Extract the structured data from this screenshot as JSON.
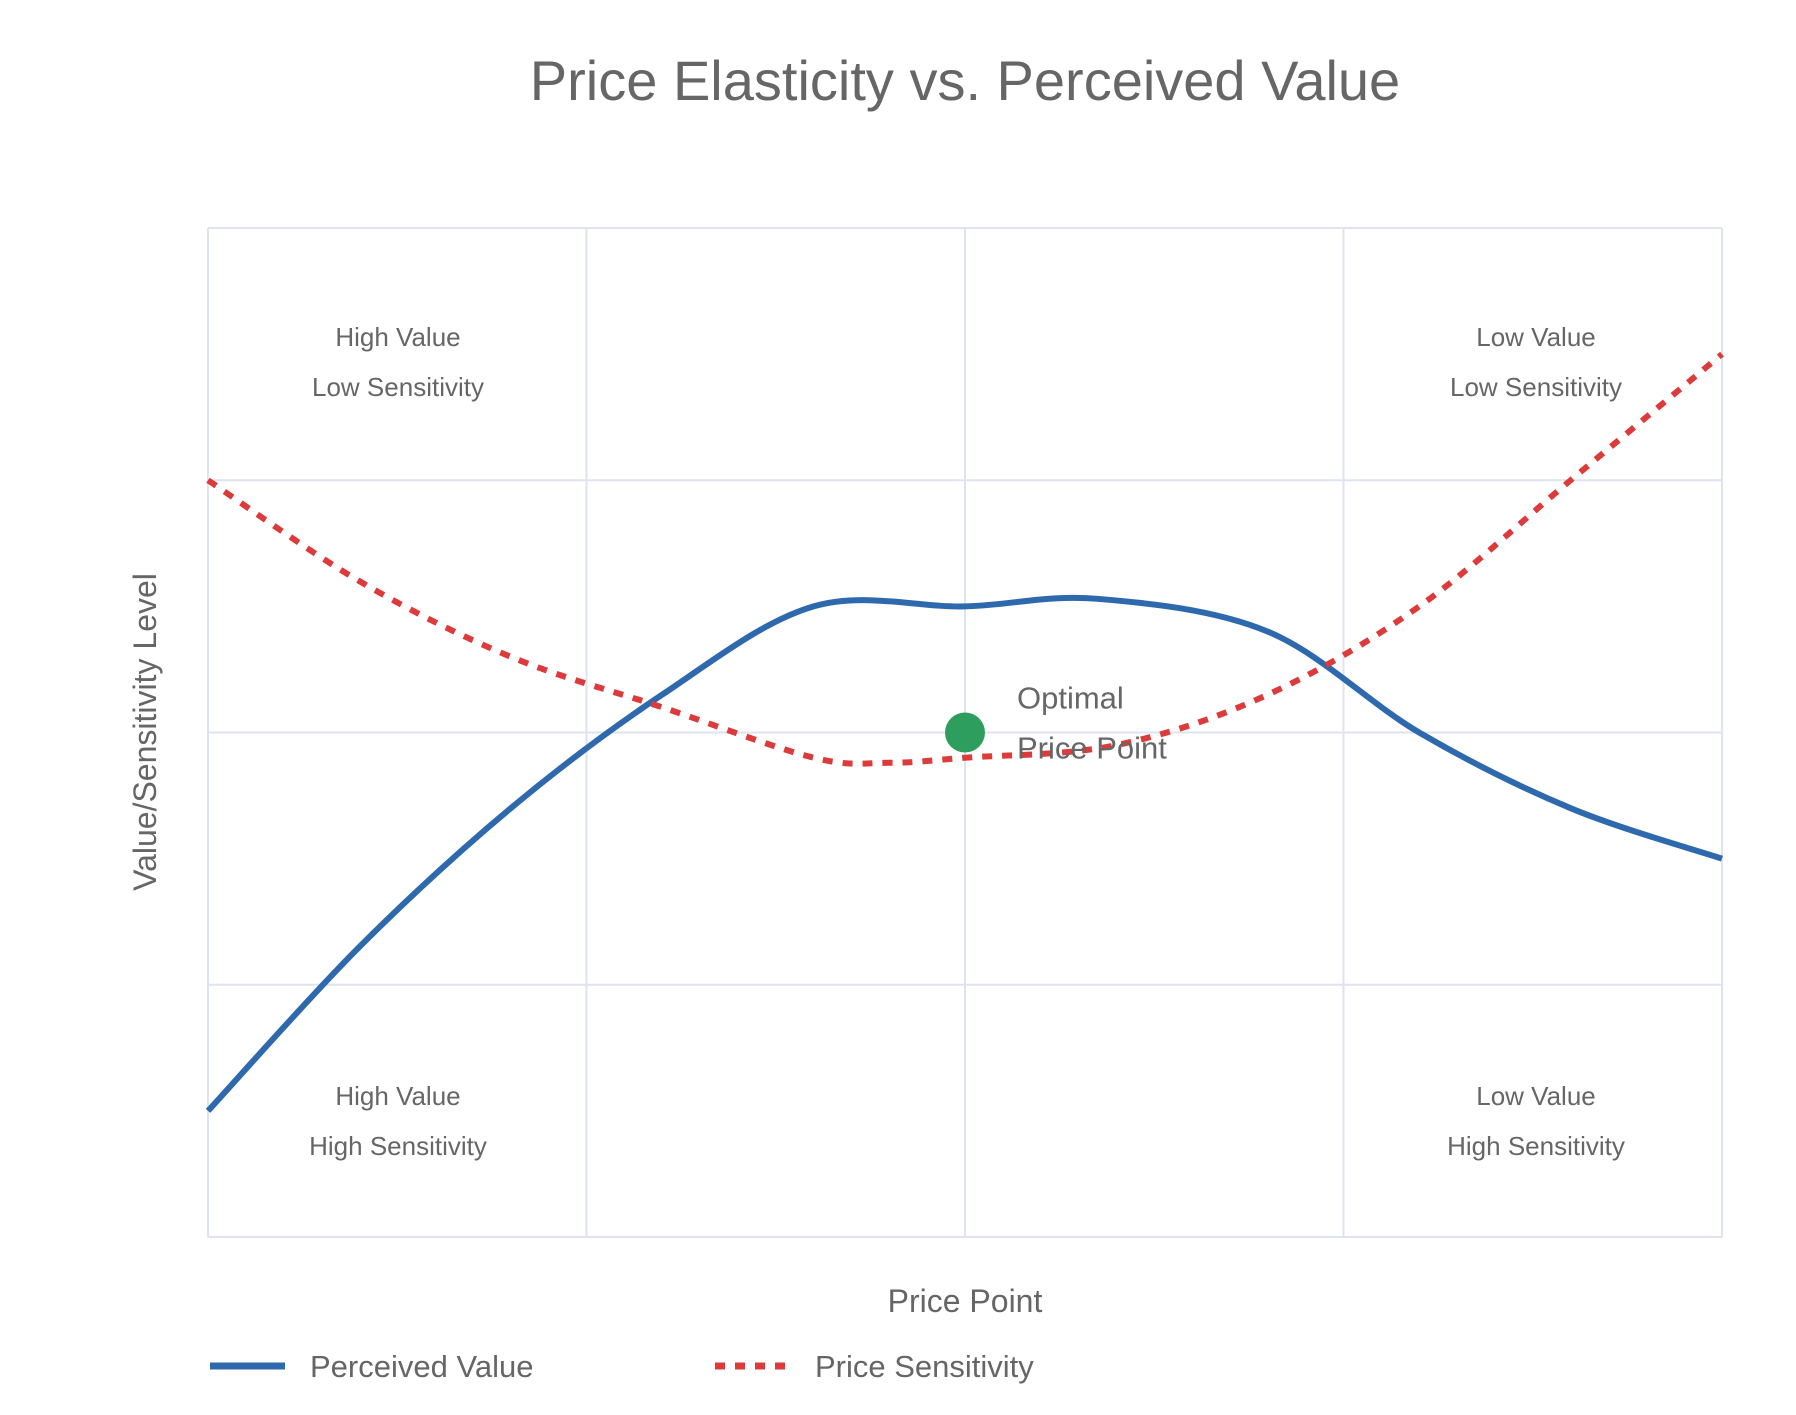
{
  "chart_data": {
    "type": "line",
    "title": "Price Elasticity vs. Perceived Value",
    "xlabel": "Price Point",
    "ylabel": "Value/Sensitivity Level",
    "xlim": [
      0,
      4
    ],
    "ylim": [
      0,
      4
    ],
    "grid": true,
    "legend_position": "bottom-left",
    "series": [
      {
        "name": "Perceived Value",
        "style": "solid",
        "color": "#2f69ad",
        "x": [
          0,
          0.4,
          0.8,
          1.2,
          1.6,
          2.0,
          2.35,
          2.8,
          3.2,
          3.6,
          4.0
        ],
        "y": [
          0.5,
          1.15,
          1.7,
          2.15,
          2.5,
          2.5,
          2.53,
          2.4,
          2.0,
          1.7,
          1.5
        ]
      },
      {
        "name": "Price Sensitivity",
        "style": "dashed",
        "color": "#dd3b3b",
        "x": [
          0,
          0.4,
          0.8,
          1.2,
          1.6,
          1.8,
          2.0,
          2.4,
          2.8,
          3.2,
          3.6,
          4.0
        ],
        "y": [
          3.0,
          2.6,
          2.3,
          2.1,
          1.9,
          1.88,
          1.9,
          1.95,
          2.15,
          2.5,
          3.0,
          3.5
        ]
      }
    ],
    "annotations": [
      {
        "text_lines": [
          "Optimal",
          "Price Point"
        ],
        "x": 2.0,
        "y": 2.0,
        "marker_color": "#2e9e5e"
      }
    ],
    "quadrant_labels": [
      {
        "lines": [
          "High Value",
          "Low Sensitivity"
        ],
        "position": "top-left"
      },
      {
        "lines": [
          "Low Value",
          "Low Sensitivity"
        ],
        "position": "top-right"
      },
      {
        "lines": [
          "High Value",
          "High Sensitivity"
        ],
        "position": "bottom-left"
      },
      {
        "lines": [
          "Low Value",
          "High Sensitivity"
        ],
        "position": "bottom-right"
      }
    ]
  },
  "colors": {
    "grid": "#dde3ef",
    "text": "#666666",
    "value_line": "#2f69ad",
    "sensitivity_line": "#dd3b3b",
    "optimal_marker": "#2e9e5e"
  }
}
